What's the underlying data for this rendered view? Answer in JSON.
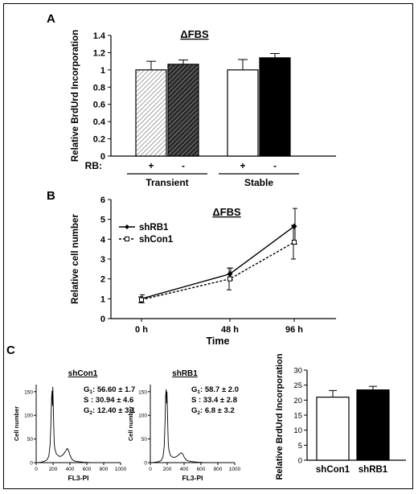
{
  "panels": {
    "A": {
      "letter": "A"
    },
    "B": {
      "letter": "B"
    },
    "C": {
      "letter": "C"
    }
  },
  "chart_data": [
    {
      "id": "A",
      "type": "bar",
      "title": "ΔFBS",
      "ylabel": "Relative BrdUrd Incorporation",
      "ylim": [
        0,
        1.4
      ],
      "yticks": [
        "0",
        "0.2",
        "0.4",
        "0.6",
        "0.8",
        "1",
        "1.2",
        "1.4"
      ],
      "row_label": "RB:",
      "categories": [
        "+",
        "-",
        "+",
        "-"
      ],
      "groups": [
        "Transient",
        "Stable"
      ],
      "values": [
        1.0,
        1.065,
        1.0,
        1.14
      ],
      "errors": [
        0.1,
        0.05,
        0.12,
        0.05
      ],
      "fills": [
        "light-hatch",
        "dark-hatch",
        "#ffffff",
        "#000000"
      ],
      "grid": false
    },
    {
      "id": "B",
      "type": "line",
      "title": "ΔFBS",
      "xlabel": "Time",
      "ylabel": "Relative cell number",
      "categories": [
        "0 h",
        "48 h",
        "96 h"
      ],
      "ylim": [
        0,
        6
      ],
      "yticks": [
        "0",
        "1",
        "2",
        "3",
        "4",
        "5",
        "6"
      ],
      "legend_position": "top-left",
      "series": [
        {
          "name": "shRB1",
          "values": [
            1.0,
            2.25,
            4.65
          ],
          "errors": [
            0.2,
            0.3,
            0.9
          ],
          "style": "solid",
          "marker": "diamond"
        },
        {
          "name": "shCon1",
          "values": [
            0.95,
            2.0,
            3.85
          ],
          "errors": [
            0.15,
            0.55,
            0.85
          ],
          "style": "dashed",
          "marker": "square"
        }
      ],
      "grid": false
    },
    {
      "id": "C-shCon1",
      "type": "line",
      "title": "shCon1",
      "xlabel": "FL3-PI",
      "ylabel": "Cell number",
      "xticks": [
        "0",
        "200",
        "400",
        "600",
        "800",
        "1000"
      ],
      "xlim": [
        0,
        1000
      ],
      "yticks": [
        "0",
        "50",
        "100",
        "150"
      ],
      "ylim": [
        0,
        165
      ],
      "stats": [
        {
          "label": "G",
          "sub": "1",
          "value": ": 56.60 ± 1.7"
        },
        {
          "label": "S",
          "sub": "",
          "value": " : 30.94 ± 4.6"
        },
        {
          "label": "G",
          "sub": "2",
          "value": ": 12.40 ± 3.1"
        }
      ],
      "histogram": {
        "x": [
          20,
          60,
          100,
          130,
          150,
          165,
          175,
          182,
          188,
          193,
          197,
          200,
          204,
          208,
          213,
          220,
          230,
          240,
          260,
          280,
          300,
          320,
          340,
          360,
          370,
          380,
          390,
          400,
          415,
          430,
          460,
          500,
          560,
          640,
          720
        ],
        "y": [
          0,
          1,
          3,
          6,
          14,
          38,
          85,
          135,
          152,
          120,
          160,
          140,
          110,
          80,
          45,
          30,
          24,
          18,
          15,
          13,
          14,
          17,
          22,
          28,
          30,
          27,
          22,
          16,
          10,
          6,
          3,
          2,
          1,
          0,
          0
        ]
      }
    },
    {
      "id": "C-shRB1",
      "type": "line",
      "title": "shRB1",
      "xlabel": "FL3-PI",
      "ylabel": "Cell number",
      "xticks": [
        "0",
        "200",
        "400",
        "600",
        "800",
        "1000"
      ],
      "xlim": [
        0,
        1000
      ],
      "yticks": [
        "0",
        "50",
        "100",
        "150"
      ],
      "ylim": [
        0,
        165
      ],
      "stats": [
        {
          "label": "G",
          "sub": "1",
          "value": ": 58.7 ± 2.0"
        },
        {
          "label": "S",
          "sub": "",
          "value": " : 33.4 ± 2.8"
        },
        {
          "label": "G",
          "sub": "2",
          "value": ": 6.8 ± 3.2"
        }
      ],
      "histogram": {
        "x": [
          20,
          60,
          100,
          130,
          150,
          165,
          175,
          182,
          188,
          193,
          197,
          200,
          204,
          208,
          213,
          220,
          230,
          240,
          260,
          280,
          300,
          320,
          340,
          360,
          370,
          380,
          390,
          400,
          415,
          430,
          460,
          500,
          560,
          640,
          720
        ],
        "y": [
          0,
          1,
          2,
          5,
          12,
          35,
          90,
          142,
          155,
          125,
          150,
          130,
          100,
          70,
          40,
          27,
          20,
          15,
          12,
          11,
          12,
          14,
          17,
          20,
          21,
          19,
          16,
          12,
          8,
          5,
          3,
          2,
          1,
          0,
          0
        ]
      }
    },
    {
      "id": "C-bar",
      "type": "bar",
      "ylabel": "Relative BrdUrd Incorporation",
      "categories": [
        "shCon1",
        "shRB1"
      ],
      "values": [
        21.0,
        23.4
      ],
      "errors": [
        2.2,
        1.2
      ],
      "fills": [
        "#ffffff",
        "#000000"
      ],
      "ylim": [
        0,
        30
      ],
      "yticks": [
        "0",
        "5",
        "10",
        "15",
        "20",
        "25",
        "30"
      ],
      "grid": false
    }
  ]
}
